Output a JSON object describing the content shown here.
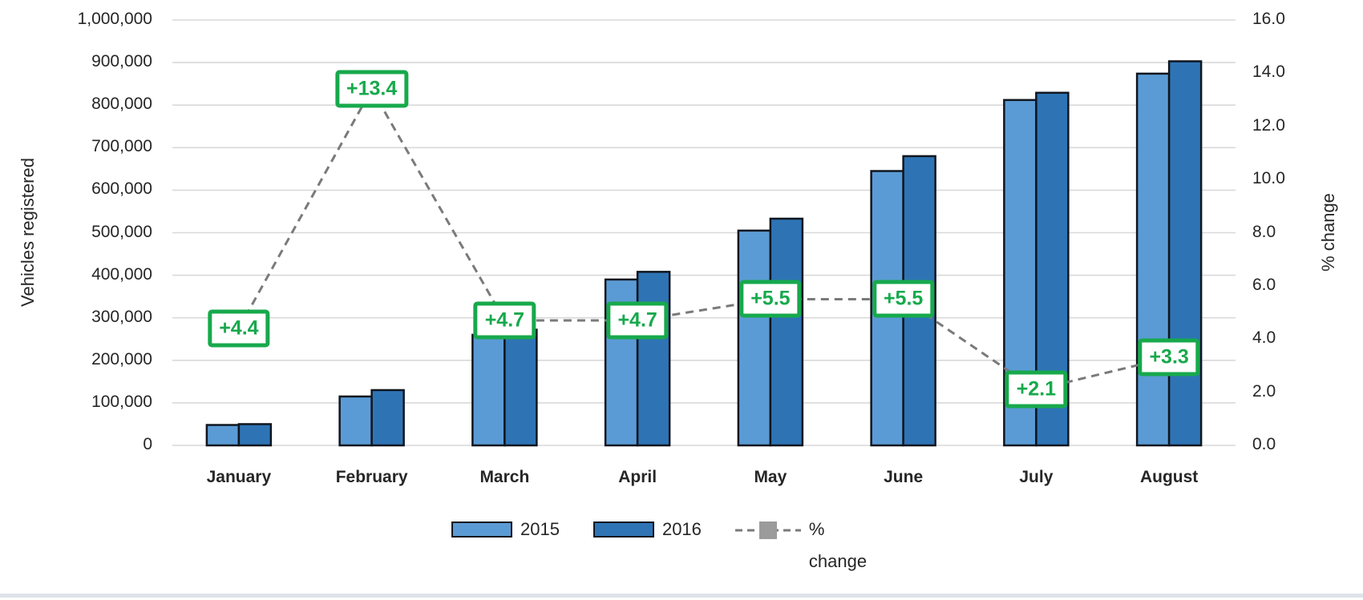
{
  "chart_data": {
    "type": "bar",
    "title": "",
    "ylabel_left": "Vehicles registered",
    "ylabel_right": "% change",
    "categories": [
      "January",
      "February",
      "March",
      "April",
      "May",
      "June",
      "July",
      "August"
    ],
    "series": [
      {
        "name": "2015",
        "values": [
          48000,
          115000,
          260000,
          390000,
          505000,
          645000,
          812000,
          874000
        ],
        "color": "#5B9BD5"
      },
      {
        "name": "2016",
        "values": [
          50000,
          130000,
          272000,
          408000,
          533000,
          680000,
          829000,
          903000
        ],
        "color": "#2E74B5"
      }
    ],
    "line_series": {
      "name": "% change",
      "values": [
        4.4,
        13.4,
        4.7,
        4.7,
        5.5,
        5.5,
        2.1,
        3.3
      ],
      "labels": [
        "+4.4",
        "+13.4",
        "+4.7",
        "+4.7",
        "+5.5",
        "+5.5",
        "+2.1",
        "+3.3"
      ],
      "axis": "right"
    },
    "axis_left": {
      "min": 0,
      "max": 1000000,
      "ticks": [
        "1,000,000",
        "900,000",
        "800,000",
        "700,000",
        "600,000",
        "500,000",
        "400,000",
        "300,000",
        "200,000",
        "100,000",
        "0"
      ]
    },
    "axis_right": {
      "min": 0,
      "max": 16,
      "ticks": [
        "16.0",
        "14.0",
        "12.0",
        "10.0",
        "8.0",
        "6.0",
        "4.0",
        "2.0",
        "0.0"
      ]
    },
    "legend": {
      "items": [
        "2015",
        "2016",
        "% change"
      ],
      "position": "bottom"
    },
    "grid": "horizontal",
    "colors": {
      "bar_2015": "#5B9BD5",
      "bar_2016": "#2E74B5",
      "bar_outline": "#10161f",
      "gridline": "#D9D9D9",
      "dashed_line": "#7A7A7A",
      "pct_label_green": "#17A94C",
      "axis_text": "#262626",
      "legend_marker_gray": "#9b9b9b"
    }
  }
}
